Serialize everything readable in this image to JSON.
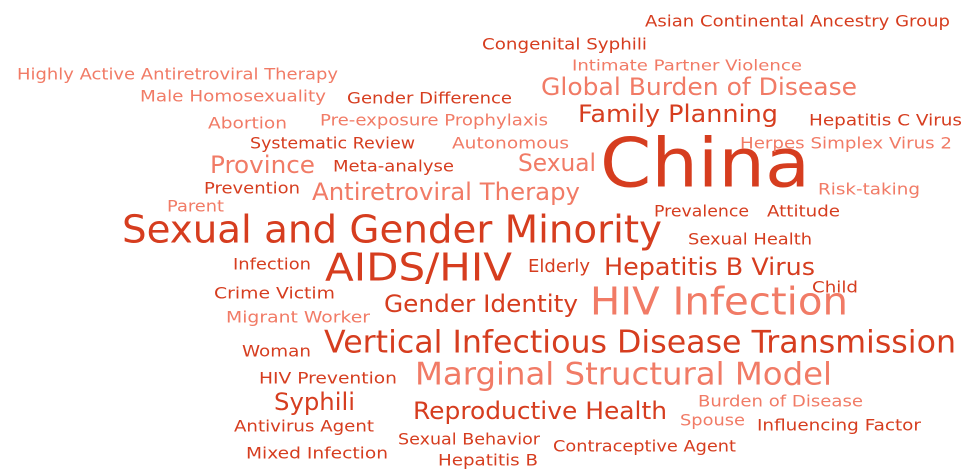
{
  "words": [
    "Asian Continental Ancestry Group",
    "Congenital Syphili",
    "Intimate Partner Violence",
    "Highly Active Antiretroviral Therapy",
    "Global Burden of Disease",
    "Male Homosexuality",
    "Gender Difference",
    "Family Planning",
    "Abortion",
    "Pre-exposure Prophylaxis",
    "Hepatitis C Virus",
    "Systematic Review",
    "Autonomous",
    "China",
    "Herpes Simplex Virus 2",
    "Province",
    "Meta-analyse",
    "Sexual",
    "Prevention",
    "Antiretroviral Therapy",
    "Risk-taking",
    "Parent",
    "Prevalence",
    "Attitude",
    "Sexual and Gender Minority",
    "Sexual Health",
    "Infection",
    "AIDS/HIV",
    "Elderly",
    "Hepatitis B Virus",
    "Child",
    "Crime Victim",
    "HIV Infection",
    "Gender Identity",
    "Migrant Worker",
    "Woman",
    "Vertical Infectious Disease Transmission",
    "HIV Prevention",
    "Marginal Structural Model",
    "Syphili",
    "Burden of Disease",
    "Reproductive Health",
    "Spouse",
    "Antivirus Agent",
    "Influencing Factor",
    "Sexual Behavior",
    "Contraceptive Agent",
    "Mixed Infection",
    "Hepatitis B"
  ]
}
